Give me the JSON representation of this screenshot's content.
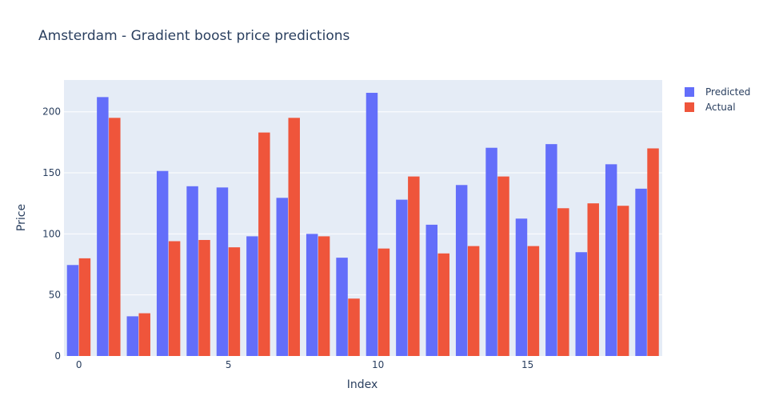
{
  "chart_data": {
    "type": "bar",
    "title": "Amsterdam - Gradient boost price predictions",
    "xlabel": "Index",
    "ylabel": "Price",
    "x": [
      0,
      1,
      2,
      3,
      4,
      5,
      6,
      7,
      8,
      9,
      10,
      11,
      12,
      13,
      14,
      15,
      16,
      17,
      18,
      19
    ],
    "xticks": [
      0,
      5,
      10,
      15
    ],
    "yticks": [
      0,
      50,
      100,
      150,
      200
    ],
    "ylim": [
      0,
      226
    ],
    "grid": true,
    "legend_position": "top-right",
    "series": [
      {
        "name": "Predicted",
        "color": "#636efa",
        "values": [
          74.5,
          212,
          32.5,
          151.5,
          139,
          138,
          98,
          129.5,
          100,
          80.5,
          215.5,
          128,
          107.5,
          140,
          170.5,
          112.5,
          173.5,
          85,
          157,
          137
        ]
      },
      {
        "name": "Actual",
        "color": "#ef553b",
        "values": [
          80,
          195,
          35,
          94,
          95,
          89,
          183,
          195,
          98,
          47,
          88,
          147,
          84,
          90,
          147,
          90,
          121,
          125,
          123,
          170
        ]
      }
    ],
    "colors": {
      "plot_background": "#e5ecf6",
      "gridline": "#ffffff",
      "text": "#2a3f5f"
    }
  }
}
